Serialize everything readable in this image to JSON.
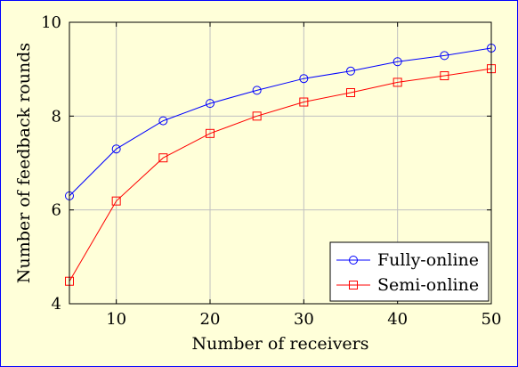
{
  "chart_data": {
    "type": "line",
    "xlabel": "Number of receivers",
    "ylabel": "Number of feedback rounds",
    "xlim": [
      5,
      50
    ],
    "ylim": [
      4,
      10
    ],
    "xticks": [
      10,
      20,
      30,
      40,
      50
    ],
    "yticks": [
      4,
      6,
      8,
      10
    ],
    "grid": true,
    "legend_position": "bottom-right",
    "background": "#ffffd9",
    "x": [
      5,
      10,
      15,
      20,
      25,
      30,
      35,
      40,
      45,
      50
    ],
    "series": [
      {
        "name": "Fully-online",
        "color": "#0000ff",
        "marker": "circle",
        "values": [
          6.3,
          7.3,
          7.9,
          8.27,
          8.55,
          8.8,
          8.96,
          9.16,
          9.29,
          9.45
        ]
      },
      {
        "name": "Semi-online",
        "color": "#ff0000",
        "marker": "square",
        "values": [
          4.48,
          6.19,
          7.11,
          7.63,
          8.0,
          8.3,
          8.5,
          8.72,
          8.86,
          9.01
        ]
      }
    ]
  }
}
